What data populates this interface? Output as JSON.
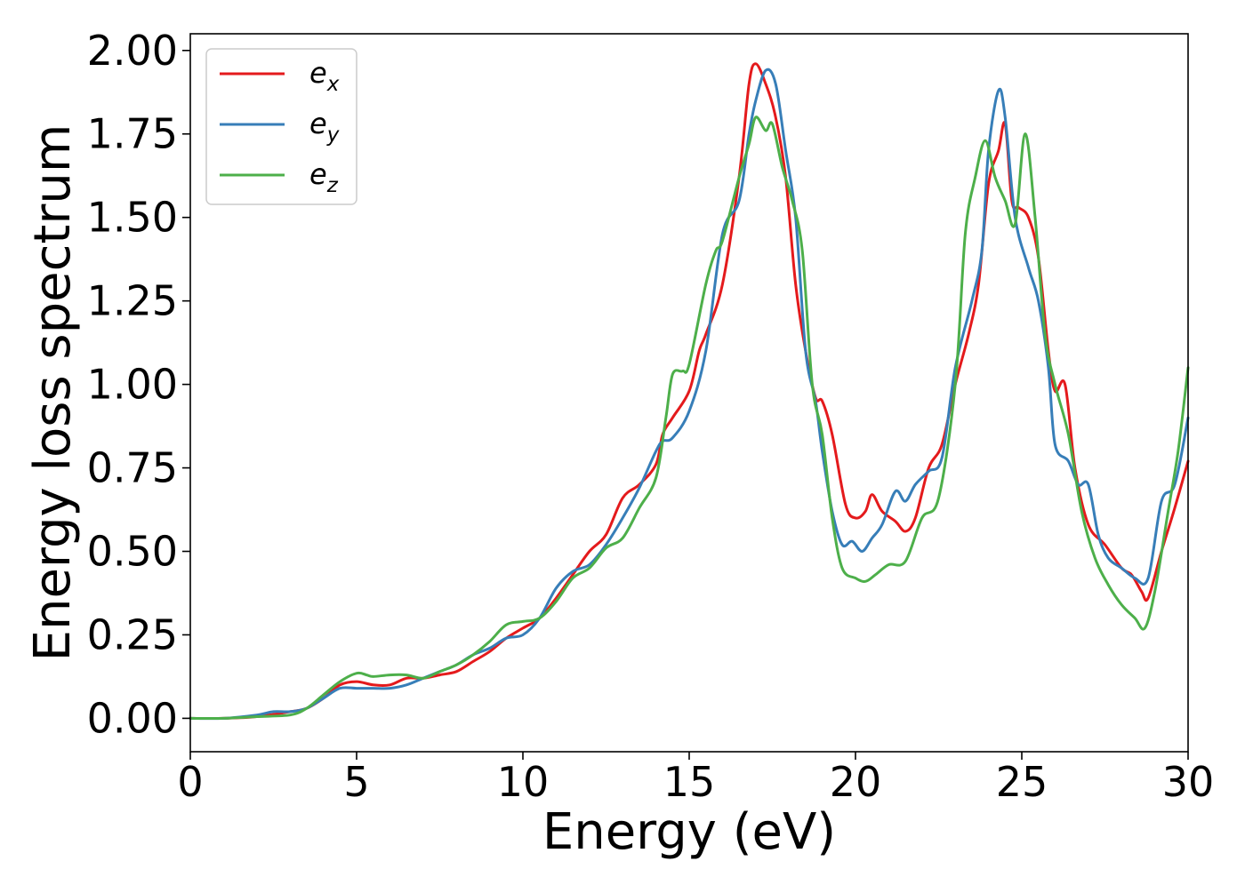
{
  "colors": {
    "ex": "#e41a1c",
    "ey": "#377eb8",
    "ez": "#4daf4a"
  },
  "chart_data": {
    "type": "line",
    "xlabel": "Energy (eV)",
    "ylabel": "Energy loss spectrum",
    "xlim": [
      0,
      30
    ],
    "ylim": [
      -0.1,
      2.05
    ],
    "xticks": [
      0,
      5,
      10,
      15,
      20,
      25,
      30
    ],
    "yticks": [
      0.0,
      0.25,
      0.5,
      0.75,
      1.0,
      1.25,
      1.5,
      1.75,
      2.0
    ],
    "xtick_labels": [
      "0",
      "5",
      "10",
      "15",
      "20",
      "25",
      "30"
    ],
    "ytick_labels": [
      "0.00",
      "0.25",
      "0.50",
      "0.75",
      "1.00",
      "1.25",
      "1.50",
      "1.75",
      "2.00"
    ],
    "grid": false,
    "legend_position": "top-left",
    "series": [
      {
        "name": "e_x",
        "label_base": "e",
        "label_sub": "x",
        "color": "#e41a1c",
        "points": [
          [
            0,
            0
          ],
          [
            1,
            0
          ],
          [
            2,
            0.005
          ],
          [
            3,
            0.02
          ],
          [
            3.5,
            0.03
          ],
          [
            4,
            0.06
          ],
          [
            4.5,
            0.1
          ],
          [
            5,
            0.11
          ],
          [
            5.5,
            0.1
          ],
          [
            6,
            0.1
          ],
          [
            6.5,
            0.12
          ],
          [
            7,
            0.12
          ],
          [
            7.5,
            0.13
          ],
          [
            8,
            0.14
          ],
          [
            8.5,
            0.17
          ],
          [
            9,
            0.2
          ],
          [
            9.5,
            0.24
          ],
          [
            10,
            0.27
          ],
          [
            10.5,
            0.3
          ],
          [
            11,
            0.36
          ],
          [
            11.5,
            0.43
          ],
          [
            12,
            0.5
          ],
          [
            12.5,
            0.55
          ],
          [
            13,
            0.66
          ],
          [
            13.5,
            0.7
          ],
          [
            14,
            0.76
          ],
          [
            14.2,
            0.85
          ],
          [
            14.5,
            0.9
          ],
          [
            15,
            0.98
          ],
          [
            15.3,
            1.1
          ],
          [
            15.5,
            1.15
          ],
          [
            16,
            1.3
          ],
          [
            16.5,
            1.62
          ],
          [
            16.8,
            1.9
          ],
          [
            17,
            1.96
          ],
          [
            17.3,
            1.9
          ],
          [
            17.6,
            1.8
          ],
          [
            17.9,
            1.62
          ],
          [
            18.2,
            1.3
          ],
          [
            18.5,
            1.1
          ],
          [
            18.8,
            0.96
          ],
          [
            19,
            0.95
          ],
          [
            19.3,
            0.85
          ],
          [
            19.7,
            0.64
          ],
          [
            20,
            0.6
          ],
          [
            20.3,
            0.62
          ],
          [
            20.5,
            0.67
          ],
          [
            20.8,
            0.62
          ],
          [
            21.2,
            0.59
          ],
          [
            21.5,
            0.56
          ],
          [
            21.8,
            0.6
          ],
          [
            22.2,
            0.75
          ],
          [
            22.6,
            0.82
          ],
          [
            23,
            1.0
          ],
          [
            23.4,
            1.15
          ],
          [
            23.7,
            1.3
          ],
          [
            24,
            1.6
          ],
          [
            24.3,
            1.7
          ],
          [
            24.5,
            1.78
          ],
          [
            24.7,
            1.55
          ],
          [
            24.9,
            1.53
          ],
          [
            25.2,
            1.5
          ],
          [
            25.5,
            1.38
          ],
          [
            25.8,
            1.1
          ],
          [
            26,
            0.98
          ],
          [
            26.3,
            1.0
          ],
          [
            26.6,
            0.75
          ],
          [
            27,
            0.58
          ],
          [
            27.5,
            0.52
          ],
          [
            28,
            0.45
          ],
          [
            28.3,
            0.43
          ],
          [
            28.6,
            0.38
          ],
          [
            28.8,
            0.36
          ],
          [
            29.2,
            0.5
          ],
          [
            29.6,
            0.63
          ],
          [
            30,
            0.77
          ]
        ]
      },
      {
        "name": "e_y",
        "label_base": "e",
        "label_sub": "y",
        "color": "#377eb8",
        "points": [
          [
            0,
            0
          ],
          [
            1,
            0
          ],
          [
            2,
            0.01
          ],
          [
            2.5,
            0.02
          ],
          [
            3,
            0.02
          ],
          [
            3.5,
            0.03
          ],
          [
            4,
            0.06
          ],
          [
            4.5,
            0.09
          ],
          [
            5,
            0.09
          ],
          [
            5.5,
            0.09
          ],
          [
            6,
            0.09
          ],
          [
            6.5,
            0.1
          ],
          [
            7,
            0.12
          ],
          [
            7.5,
            0.14
          ],
          [
            8,
            0.16
          ],
          [
            8.5,
            0.19
          ],
          [
            9,
            0.21
          ],
          [
            9.5,
            0.24
          ],
          [
            10,
            0.25
          ],
          [
            10.5,
            0.3
          ],
          [
            11,
            0.39
          ],
          [
            11.5,
            0.44
          ],
          [
            12,
            0.46
          ],
          [
            12.5,
            0.52
          ],
          [
            13,
            0.6
          ],
          [
            13.5,
            0.69
          ],
          [
            14,
            0.8
          ],
          [
            14.2,
            0.83
          ],
          [
            14.5,
            0.84
          ],
          [
            15,
            0.92
          ],
          [
            15.5,
            1.1
          ],
          [
            16,
            1.45
          ],
          [
            16.5,
            1.55
          ],
          [
            16.8,
            1.75
          ],
          [
            17,
            1.85
          ],
          [
            17.3,
            1.94
          ],
          [
            17.6,
            1.9
          ],
          [
            17.9,
            1.7
          ],
          [
            18.2,
            1.5
          ],
          [
            18.5,
            1.1
          ],
          [
            18.8,
            0.95
          ],
          [
            19,
            0.8
          ],
          [
            19.3,
            0.62
          ],
          [
            19.6,
            0.52
          ],
          [
            19.9,
            0.53
          ],
          [
            20.2,
            0.5
          ],
          [
            20.5,
            0.54
          ],
          [
            20.8,
            0.58
          ],
          [
            21.2,
            0.68
          ],
          [
            21.5,
            0.65
          ],
          [
            21.8,
            0.7
          ],
          [
            22.2,
            0.74
          ],
          [
            22.6,
            0.78
          ],
          [
            23,
            1.05
          ],
          [
            23.5,
            1.25
          ],
          [
            23.8,
            1.4
          ],
          [
            24,
            1.7
          ],
          [
            24.3,
            1.88
          ],
          [
            24.5,
            1.8
          ],
          [
            24.8,
            1.5
          ],
          [
            25.2,
            1.35
          ],
          [
            25.5,
            1.25
          ],
          [
            25.8,
            1.05
          ],
          [
            26,
            0.82
          ],
          [
            26.4,
            0.77
          ],
          [
            26.7,
            0.7
          ],
          [
            27,
            0.7
          ],
          [
            27.3,
            0.55
          ],
          [
            27.6,
            0.48
          ],
          [
            28,
            0.45
          ],
          [
            28.4,
            0.42
          ],
          [
            28.8,
            0.42
          ],
          [
            29.2,
            0.65
          ],
          [
            29.6,
            0.7
          ],
          [
            30,
            0.9
          ]
        ]
      },
      {
        "name": "e_z",
        "label_base": "e",
        "label_sub": "z",
        "color": "#4daf4a",
        "points": [
          [
            0,
            0
          ],
          [
            1,
            0
          ],
          [
            2,
            0.005
          ],
          [
            3,
            0.01
          ],
          [
            3.5,
            0.03
          ],
          [
            4,
            0.07
          ],
          [
            4.5,
            0.11
          ],
          [
            5,
            0.135
          ],
          [
            5.3,
            0.13
          ],
          [
            5.5,
            0.125
          ],
          [
            6,
            0.13
          ],
          [
            6.5,
            0.13
          ],
          [
            7,
            0.12
          ],
          [
            7.5,
            0.14
          ],
          [
            8,
            0.16
          ],
          [
            8.5,
            0.19
          ],
          [
            9,
            0.23
          ],
          [
            9.5,
            0.28
          ],
          [
            10,
            0.29
          ],
          [
            10.5,
            0.3
          ],
          [
            11,
            0.35
          ],
          [
            11.5,
            0.42
          ],
          [
            12,
            0.45
          ],
          [
            12.5,
            0.51
          ],
          [
            13,
            0.54
          ],
          [
            13.5,
            0.63
          ],
          [
            14,
            0.72
          ],
          [
            14.3,
            0.9
          ],
          [
            14.5,
            1.03
          ],
          [
            14.8,
            1.04
          ],
          [
            15,
            1.06
          ],
          [
            15.5,
            1.3
          ],
          [
            15.8,
            1.4
          ],
          [
            16,
            1.43
          ],
          [
            16.5,
            1.62
          ],
          [
            16.8,
            1.72
          ],
          [
            17,
            1.8
          ],
          [
            17.3,
            1.76
          ],
          [
            17.5,
            1.78
          ],
          [
            17.8,
            1.65
          ],
          [
            18.1,
            1.55
          ],
          [
            18.4,
            1.4
          ],
          [
            18.7,
            1.0
          ],
          [
            19,
            0.85
          ],
          [
            19.3,
            0.6
          ],
          [
            19.6,
            0.45
          ],
          [
            20,
            0.42
          ],
          [
            20.3,
            0.41
          ],
          [
            20.6,
            0.43
          ],
          [
            21,
            0.46
          ],
          [
            21.5,
            0.47
          ],
          [
            22,
            0.6
          ],
          [
            22.5,
            0.66
          ],
          [
            23,
            1.0
          ],
          [
            23.3,
            1.45
          ],
          [
            23.6,
            1.62
          ],
          [
            23.9,
            1.73
          ],
          [
            24.2,
            1.62
          ],
          [
            24.5,
            1.55
          ],
          [
            24.8,
            1.48
          ],
          [
            25.1,
            1.75
          ],
          [
            25.4,
            1.5
          ],
          [
            25.7,
            1.15
          ],
          [
            26,
            1.0
          ],
          [
            26.4,
            0.85
          ],
          [
            26.8,
            0.62
          ],
          [
            27.2,
            0.48
          ],
          [
            27.6,
            0.4
          ],
          [
            28,
            0.34
          ],
          [
            28.4,
            0.3
          ],
          [
            28.7,
            0.27
          ],
          [
            29,
            0.38
          ],
          [
            29.4,
            0.62
          ],
          [
            29.7,
            0.8
          ],
          [
            30,
            1.05
          ]
        ]
      }
    ]
  }
}
